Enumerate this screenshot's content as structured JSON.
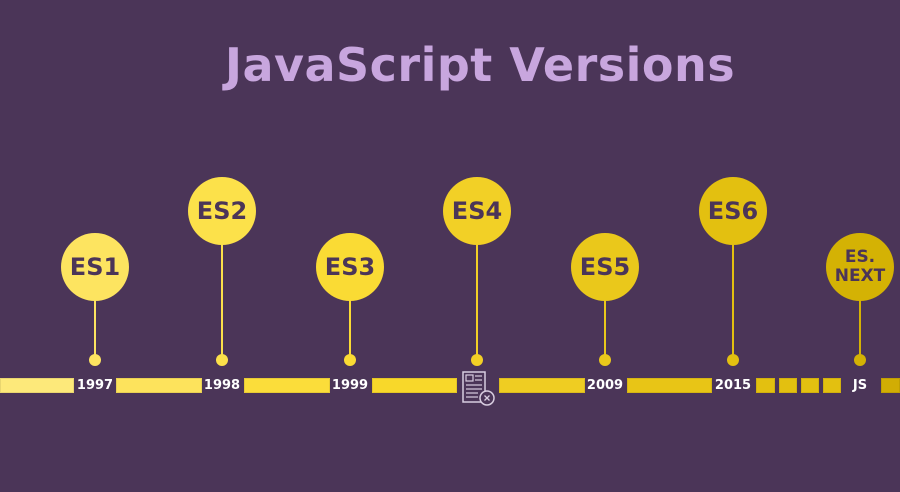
{
  "title": "JavaScript Versions",
  "versions": [
    {
      "name": "ES1",
      "year": "1997",
      "color": "#fde460"
    },
    {
      "name": "ES2",
      "year": "1998",
      "color": "#fce14a"
    },
    {
      "name": "ES3",
      "year": "1999",
      "color": "#fadb34"
    },
    {
      "name": "ES4",
      "year": "",
      "color": "#f2d026",
      "icon": "cancelled-document-icon"
    },
    {
      "name": "ES5",
      "year": "2009",
      "color": "#eac81b"
    },
    {
      "name": "ES6",
      "year": "2015",
      "color": "#e3c010"
    },
    {
      "name": "ES.\nNEXT",
      "year": "JS",
      "color": "#d4b204"
    }
  ]
}
